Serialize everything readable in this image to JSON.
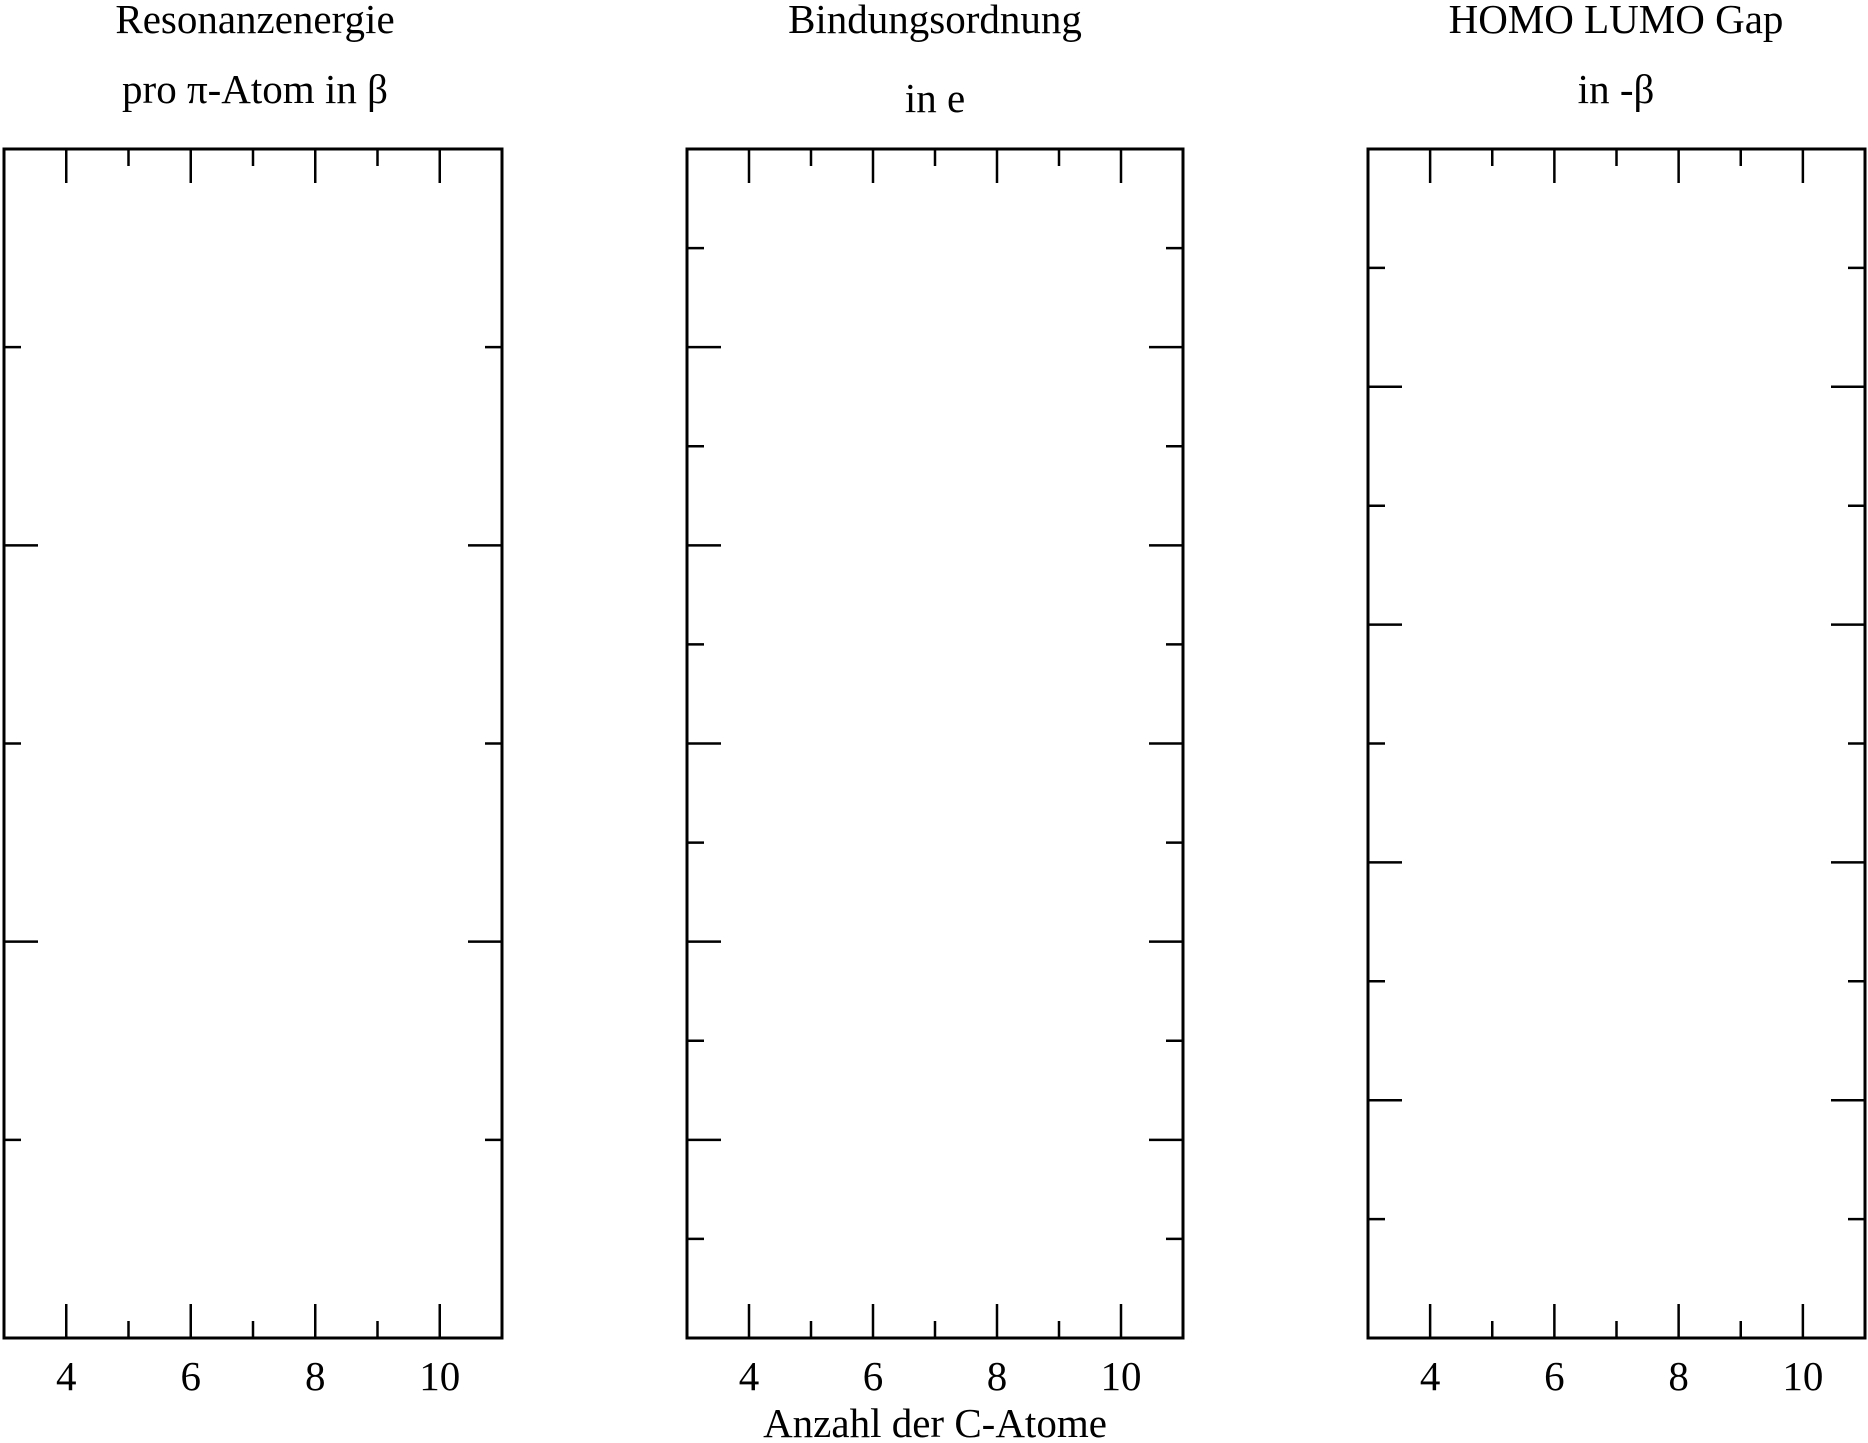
{
  "chart_data": [
    {
      "type": "line",
      "title_lines": [
        "Resonanzenergie",
        "pro π-Atom in β"
      ],
      "xlabel": "",
      "ylabel": "",
      "xlim": [
        3,
        11
      ],
      "xticks_major": [
        4,
        6,
        8,
        10
      ],
      "xticks_minor": [
        5,
        7,
        9
      ],
      "ylim": [
        0,
        6
      ],
      "yticks": [
        1,
        2,
        3,
        4,
        5
      ],
      "series": [],
      "grid": false
    },
    {
      "type": "line",
      "title_lines": [
        "Bindungsordnung",
        "in e"
      ],
      "xlabel": "Anzahl der C-Atome",
      "ylabel": "",
      "xlim": [
        3,
        11
      ],
      "xticks_major": [
        4,
        6,
        8,
        10
      ],
      "xticks_minor": [
        5,
        7,
        9
      ],
      "ylim": [
        0,
        12
      ],
      "yticks": [
        1,
        2,
        3,
        4,
        5,
        6,
        7,
        8,
        9,
        10,
        11
      ],
      "series": [],
      "grid": false
    },
    {
      "type": "line",
      "title_lines": [
        "HOMO LUMO Gap",
        "in -β"
      ],
      "xlabel": "",
      "ylabel": "",
      "xlim": [
        3,
        11
      ],
      "xticks_major": [
        4,
        6,
        8,
        10
      ],
      "xticks_minor": [
        5,
        7,
        9
      ],
      "ylim": [
        0,
        10
      ],
      "yticks": [
        1,
        2,
        3,
        4,
        5,
        6,
        7,
        8,
        9
      ],
      "yticks_major": [
        2,
        4,
        6,
        8
      ],
      "series": [],
      "grid": false
    }
  ]
}
